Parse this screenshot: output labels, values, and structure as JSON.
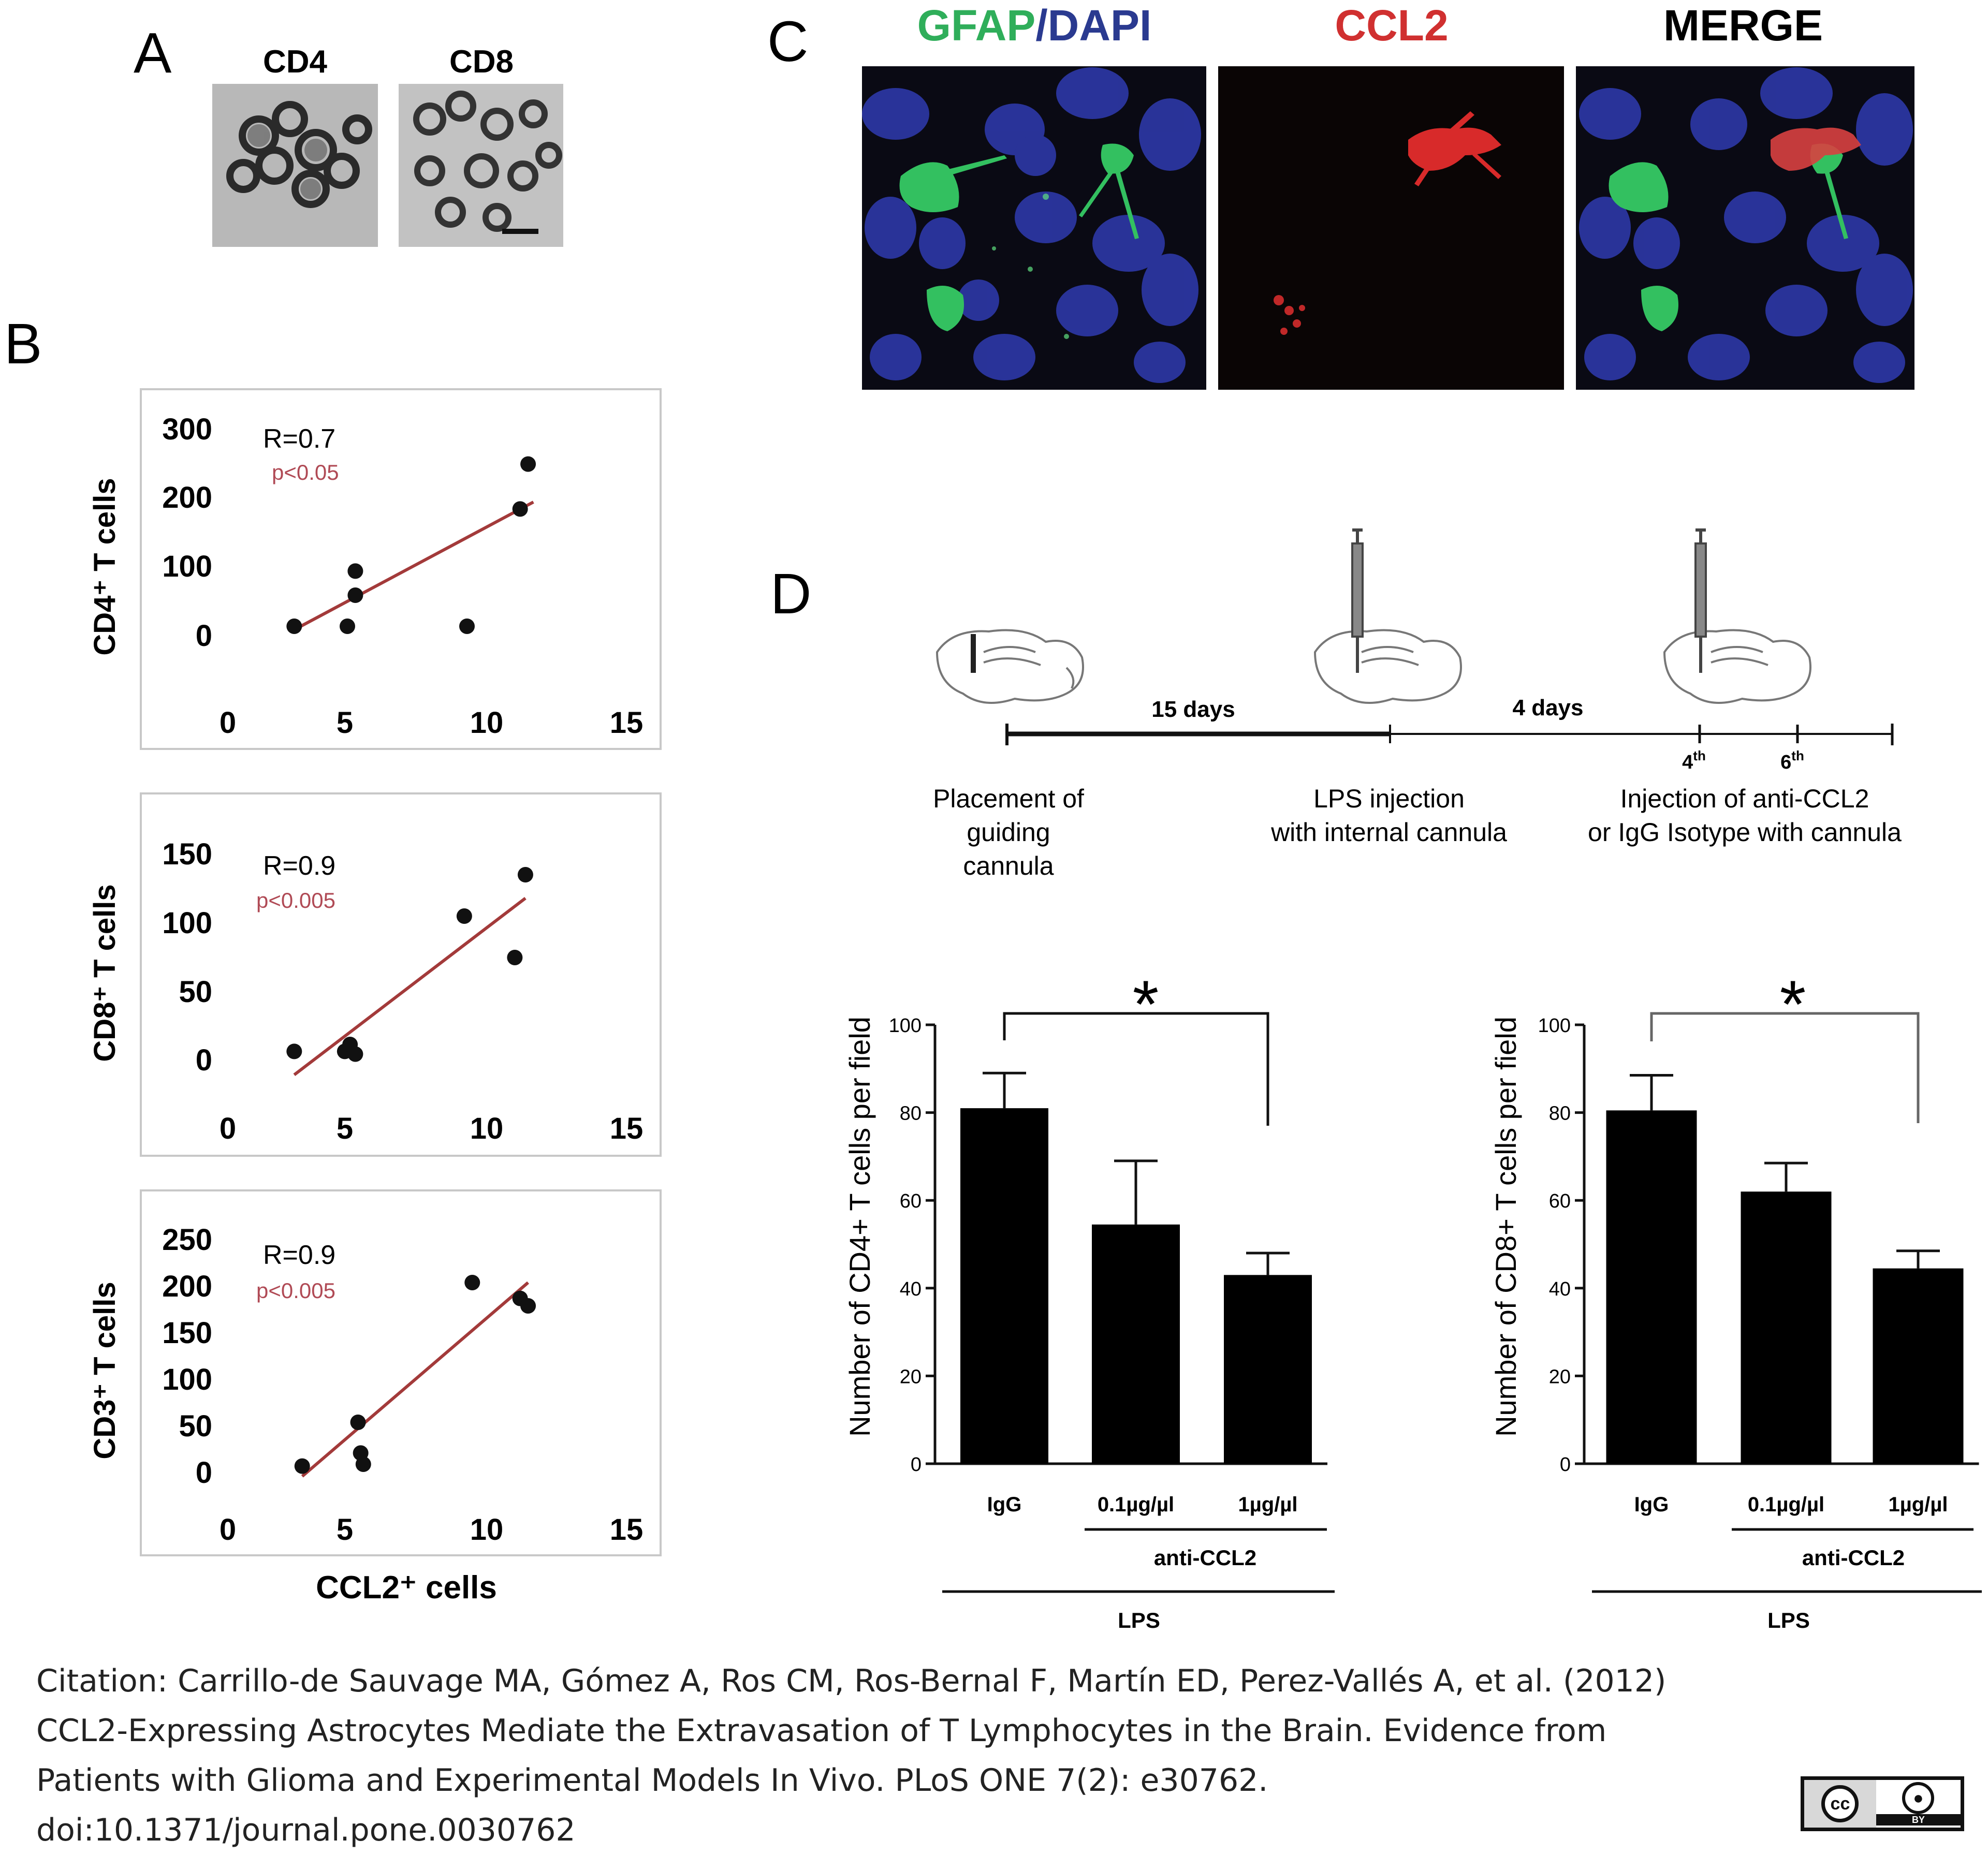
{
  "panel_labels": {
    "a": "A",
    "b": "B",
    "c": "C",
    "d": "D"
  },
  "panel_a": {
    "titles": [
      "CD4",
      "CD8"
    ]
  },
  "panel_b": {
    "x_common_label": "CCL2⁺ cells",
    "x_ticks": [
      "0",
      "5",
      "10",
      "15"
    ],
    "plots": [
      {
        "ylabel": "CD4⁺ T cells",
        "yticks": [
          "300",
          "200",
          "100",
          "0"
        ],
        "r": "R=0.7",
        "p": "p<0.05"
      },
      {
        "ylabel": "CD8⁺ T cells",
        "yticks": [
          "150",
          "100",
          "50",
          "0"
        ],
        "r": "R=0.9",
        "p": "p<0.005"
      },
      {
        "ylabel": "CD3⁺ T cells",
        "yticks": [
          "250",
          "200",
          "150",
          "100",
          "50",
          "0"
        ],
        "r": "R=0.9",
        "p": "p<0.005"
      }
    ]
  },
  "panel_c": {
    "title_green": "GFAP",
    "title_slash": "/",
    "title_blue": "DAPI",
    "title_red": "CCL2",
    "title_merge": "MERGE"
  },
  "panel_d": {
    "timeline": {
      "interval1": "15 days",
      "interval2": "4 days",
      "tick4_num": "4",
      "tick4_sup": "th",
      "tick6_num": "6",
      "tick6_sup": "th",
      "step1": [
        "Placement of",
        "guiding",
        "cannula"
      ],
      "step2": [
        "LPS injection",
        "with internal cannula"
      ],
      "step3": [
        "Injection of anti-CCL2",
        "or IgG Isotype with cannula"
      ]
    },
    "bar_left": {
      "ylabel": "Number of CD4+ T cells per field"
    },
    "bar_right": {
      "ylabel": "Number of CD8+ T cells per field"
    },
    "bar_yticks": [
      "100",
      "80",
      "60",
      "40",
      "20",
      "0"
    ],
    "bar_categories": [
      "IgG",
      "0.1µg/µl",
      "1µg/µl"
    ],
    "group_label": "anti-CCL2",
    "lps_label": "LPS",
    "sig": "*"
  },
  "chart_data": [
    {
      "type": "scatter",
      "xlabel": "CCL2⁺ cells",
      "ylabel": "CD4⁺ T cells",
      "xlim": [
        0,
        15
      ],
      "ylim": [
        0,
        300
      ],
      "annotations": [
        "R=0.7",
        "p<0.05"
      ],
      "points": [
        [
          2.5,
          15
        ],
        [
          4.5,
          15
        ],
        [
          4.8,
          95
        ],
        [
          4.8,
          60
        ],
        [
          9,
          15
        ],
        [
          11,
          185
        ],
        [
          11.3,
          250
        ]
      ],
      "trendline": [
        [
          2.5,
          10
        ],
        [
          11.5,
          195
        ]
      ]
    },
    {
      "type": "scatter",
      "xlabel": "CCL2⁺ cells",
      "ylabel": "CD8⁺ T cells",
      "xlim": [
        0,
        15
      ],
      "ylim": [
        0,
        150
      ],
      "annotations": [
        "R=0.9",
        "p<0.005"
      ],
      "points": [
        [
          2.5,
          7
        ],
        [
          4.4,
          7
        ],
        [
          4.6,
          12
        ],
        [
          4.8,
          5
        ],
        [
          8.9,
          105
        ],
        [
          10.8,
          75
        ],
        [
          11.2,
          135
        ]
      ],
      "trendline": [
        [
          2.5,
          -10
        ],
        [
          11.2,
          118
        ]
      ]
    },
    {
      "type": "scatter",
      "xlabel": "CCL2⁺ cells",
      "ylabel": "CD3⁺ T cells",
      "xlim": [
        0,
        15
      ],
      "ylim": [
        0,
        250
      ],
      "annotations": [
        "R=0.9",
        "p<0.005"
      ],
      "points": [
        [
          2.8,
          8
        ],
        [
          4.9,
          55
        ],
        [
          5.0,
          22
        ],
        [
          5.1,
          10
        ],
        [
          9.2,
          205
        ],
        [
          11.0,
          188
        ],
        [
          11.3,
          180
        ]
      ],
      "trendline": [
        [
          2.8,
          -3
        ],
        [
          11.3,
          205
        ]
      ]
    },
    {
      "type": "bar",
      "ylabel": "Number of CD4+ T cells per field",
      "ylim": [
        0,
        100
      ],
      "categories": [
        "IgG",
        "0.1µg/µl",
        "1µg/µl"
      ],
      "values": [
        81,
        54.5,
        43
      ],
      "errors": [
        8,
        14.5,
        5
      ]
    },
    {
      "type": "bar",
      "ylabel": "Number of CD8+ T cells per field",
      "ylim": [
        0,
        100
      ],
      "categories": [
        "IgG",
        "0.1µg/µl",
        "1µg/µl"
      ],
      "values": [
        80.5,
        62,
        44.5
      ],
      "errors": [
        8,
        6.5,
        4
      ]
    }
  ],
  "citation": [
    "Citation: Carrillo-de Sauvage MA, Gómez A, Ros CM, Ros-Bernal F, Martín ED, Perez-Vallés A, et al. (2012)",
    "CCL2-Expressing Astrocytes Mediate the Extravasation of T Lymphocytes in the Brain. Evidence from",
    "Patients with Glioma and Experimental Models In Vivo. PLoS ONE 7(2): e30762.",
    "doi:10.1371/journal.pone.0030762"
  ],
  "license": {
    "cc": "cc",
    "by": "BY"
  },
  "colors": {
    "green": "#2fae5a",
    "blue": "#2a3a90",
    "red": "#d03030",
    "trend": "#a33a3a",
    "pval": "#b04a55"
  }
}
